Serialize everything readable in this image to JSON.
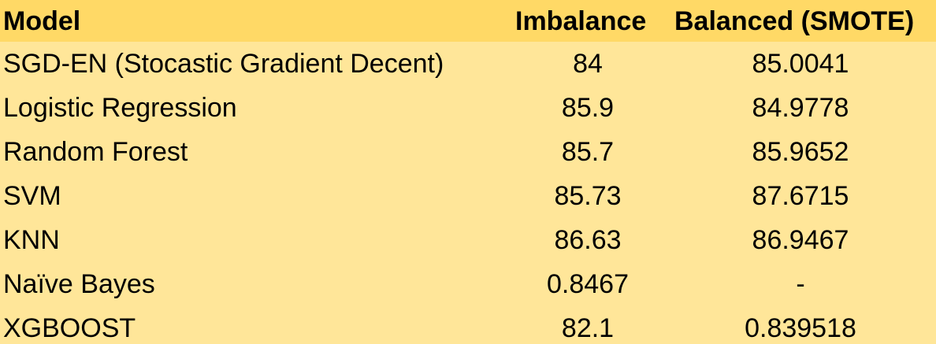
{
  "table": {
    "headers": [
      "Model",
      "Imbalance",
      "Balanced (SMOTE)"
    ],
    "rows": [
      [
        "SGD-EN (Stocastic Gradient Decent)",
        "84",
        "85.0041"
      ],
      [
        "Logistic Regression",
        "85.9",
        "84.9778"
      ],
      [
        "Random Forest",
        "85.7",
        "85.9652"
      ],
      [
        "SVM",
        "85.73",
        "87.6715"
      ],
      [
        "KNN",
        "86.63",
        "86.9467"
      ],
      [
        "Naïve Bayes",
        "0.8467",
        "-"
      ],
      [
        "XGBOOST",
        "82.1",
        "0.839518"
      ]
    ]
  },
  "colors": {
    "header_bg": "#ffd966",
    "row_bg": "#ffe699",
    "text": "#000000"
  }
}
